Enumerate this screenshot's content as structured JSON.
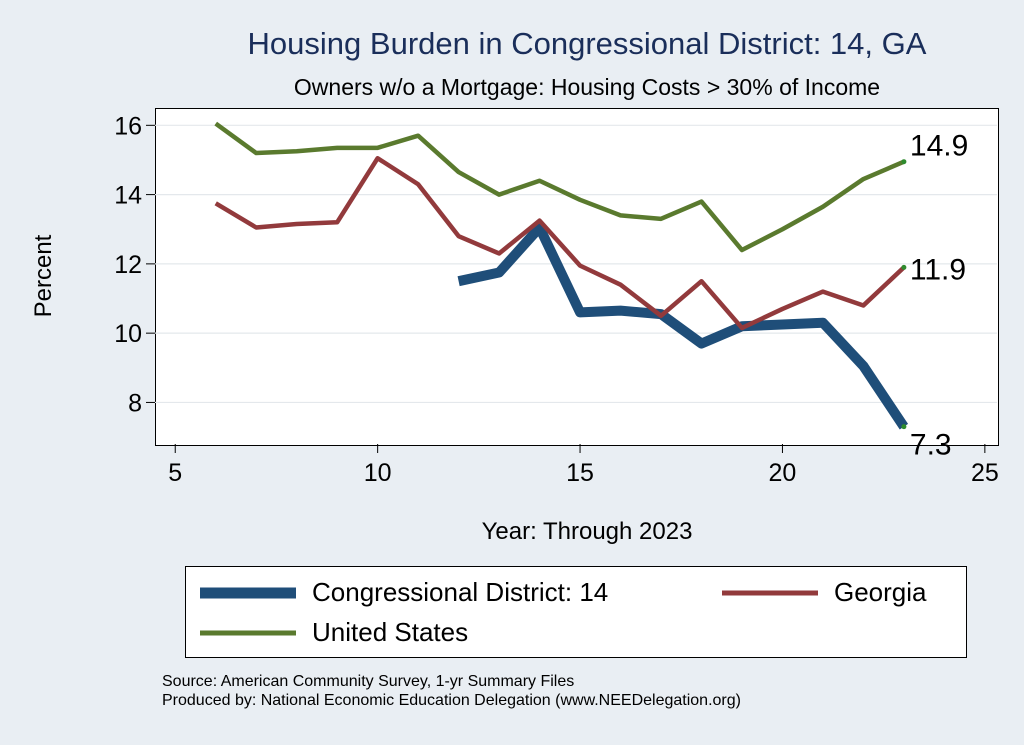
{
  "chart_data": {
    "type": "line",
    "title": "Housing Burden in Congressional District:  14, GA",
    "subtitle": "Owners w/o a Mortgage: Housing Costs > 30% of Income",
    "xlabel": "Year: Through 2023",
    "ylabel": "Percent",
    "xlim": [
      4.5,
      25.3
    ],
    "ylim": [
      6.8,
      16.5
    ],
    "xticks": [
      5,
      10,
      15,
      20,
      25
    ],
    "yticks": [
      8,
      10,
      12,
      14,
      16
    ],
    "grid": true,
    "legend_position": "bottom",
    "series": [
      {
        "name": "Congressional District:  14",
        "color": "#1f4e79",
        "x": [
          12,
          13,
          14,
          15,
          16,
          17,
          18,
          19,
          20,
          21,
          22,
          23
        ],
        "values": [
          11.5,
          11.75,
          13.05,
          10.6,
          10.65,
          10.55,
          9.7,
          10.2,
          10.25,
          10.3,
          9.05,
          7.3
        ],
        "end_label": "7.3"
      },
      {
        "name": "Georgia",
        "color": "#923a3c",
        "x": [
          6,
          7,
          8,
          9,
          10,
          11,
          12,
          13,
          14,
          15,
          16,
          17,
          18,
          19,
          20,
          21,
          22,
          23
        ],
        "values": [
          13.75,
          13.05,
          13.15,
          13.2,
          15.05,
          14.3,
          12.8,
          12.3,
          13.25,
          11.95,
          11.4,
          10.5,
          11.5,
          10.15,
          10.7,
          11.2,
          10.8,
          11.9
        ],
        "end_label": "11.9"
      },
      {
        "name": "United States",
        "color": "#5a7a2e",
        "x": [
          6,
          7,
          8,
          9,
          10,
          11,
          12,
          13,
          14,
          15,
          16,
          17,
          18,
          19,
          20,
          21,
          22,
          23
        ],
        "values": [
          16.05,
          15.2,
          15.25,
          15.35,
          15.35,
          15.7,
          14.65,
          14.0,
          14.4,
          13.85,
          13.4,
          13.3,
          13.8,
          12.4,
          13.0,
          13.65,
          14.45,
          14.95
        ],
        "end_label": "14.9"
      }
    ]
  },
  "legend": {
    "items": [
      {
        "label": "Congressional District:  14",
        "color": "#1f4e79"
      },
      {
        "label": "Georgia",
        "color": "#923a3c"
      },
      {
        "label": "United States",
        "color": "#5a7a2e"
      }
    ]
  },
  "source": {
    "line1": "Source: American Community Survey, 1-yr Summary Files",
    "line2": "Produced by: National Economic Education Delegation (www.NEEDelegation.org)"
  }
}
